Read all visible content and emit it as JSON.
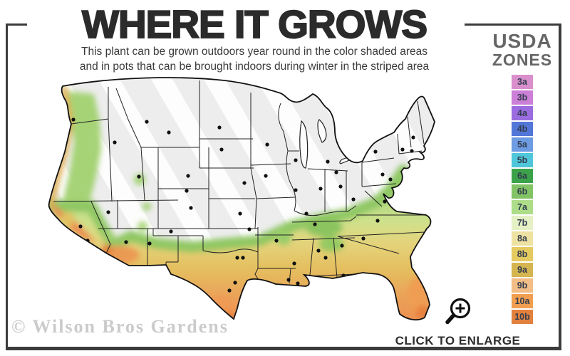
{
  "header": {
    "title": "WHERE IT GROWS",
    "subtitle_line1": "This plant can be grown outdoors year round in the color shaded areas",
    "subtitle_line2": "and in pots that can be brought indoors during winter in the striped area"
  },
  "legend": {
    "title_line1": "USDA",
    "title_line2": "ZONES",
    "zones": [
      {
        "label": "3a",
        "color": "#d98fcb"
      },
      {
        "label": "3b",
        "color": "#cc7fd6"
      },
      {
        "label": "4a",
        "color": "#9a6ce0"
      },
      {
        "label": "4b",
        "color": "#5276d8"
      },
      {
        "label": "5a",
        "color": "#6e9ce2"
      },
      {
        "label": "5b",
        "color": "#4fc6d9"
      },
      {
        "label": "6a",
        "color": "#3ba24a"
      },
      {
        "label": "6b",
        "color": "#82c465"
      },
      {
        "label": "7a",
        "color": "#aedd8a"
      },
      {
        "label": "7b",
        "color": "#e5f0c5"
      },
      {
        "label": "8a",
        "color": "#eee2a2"
      },
      {
        "label": "8b",
        "color": "#e5ca60"
      },
      {
        "label": "9a",
        "color": "#d4b550"
      },
      {
        "label": "9b",
        "color": "#f2bd86"
      },
      {
        "label": "10a",
        "color": "#f19e4f"
      },
      {
        "label": "10b",
        "color": "#e2813e"
      }
    ]
  },
  "map": {
    "striped_area_color": "#ededed",
    "stripe_color": "#ffffff",
    "border_color": "#1a1a1a",
    "marker_color": "#101010",
    "shade_green": "#9cd076",
    "shade_yellow": "#e4bf5e",
    "shade_orange": "#ec8f4f"
  },
  "footer": {
    "watermark": "© Wilson Bros Gardens",
    "enlarge_label": "CLICK TO ENLARGE"
  }
}
